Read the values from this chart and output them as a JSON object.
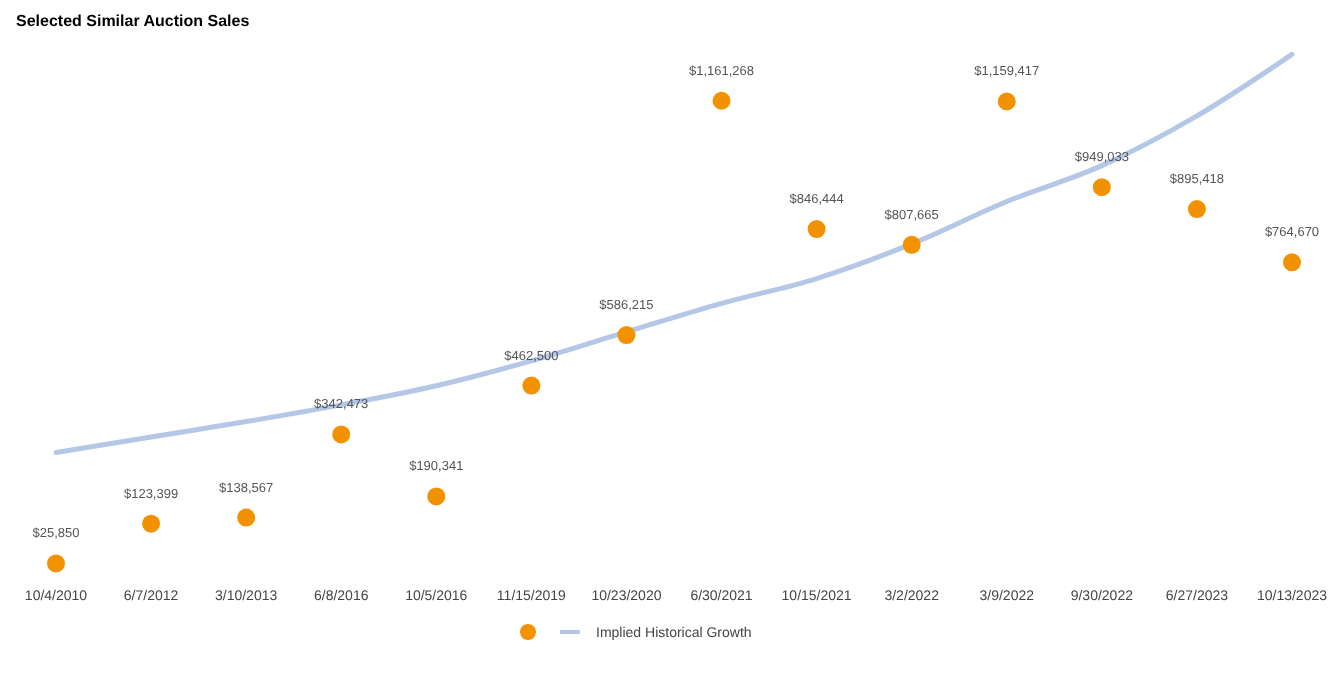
{
  "chart_data": {
    "type": "scatter",
    "title": "Selected Similar Auction Sales",
    "categories": [
      "10/4/2010",
      "6/7/2012",
      "3/10/2013",
      "6/8/2016",
      "10/5/2016",
      "11/15/2019",
      "10/23/2020",
      "6/30/2021",
      "10/15/2021",
      "3/2/2022",
      "3/9/2022",
      "9/30/2022",
      "6/27/2023",
      "10/13/2023"
    ],
    "series": [
      {
        "marker": "circle",
        "color": "#f39200",
        "values": [
          25850,
          123399,
          138567,
          342473,
          190341,
          462500,
          586215,
          1161268,
          846444,
          807665,
          1159417,
          949033,
          895418,
          764670
        ],
        "value_labels": [
          "$25,850",
          "$123,399",
          "$138,567",
          "$342,473",
          "$190,341",
          "$462,500",
          "$586,215",
          "$1,161,268",
          "$846,444",
          "$807,665",
          "$1,159,417",
          "$949,033",
          "$895,418",
          "$764,670"
        ]
      },
      {
        "type": "line",
        "name": "Implied Historical Growth",
        "color": "#b4c7e7",
        "values": [
          298000,
          336000,
          374000,
          415000,
          462000,
          523000,
          594000,
          664000,
          725000,
          810000,
          914000,
          1002000,
          1124000,
          1275000
        ]
      }
    ],
    "legend": "bottom"
  }
}
